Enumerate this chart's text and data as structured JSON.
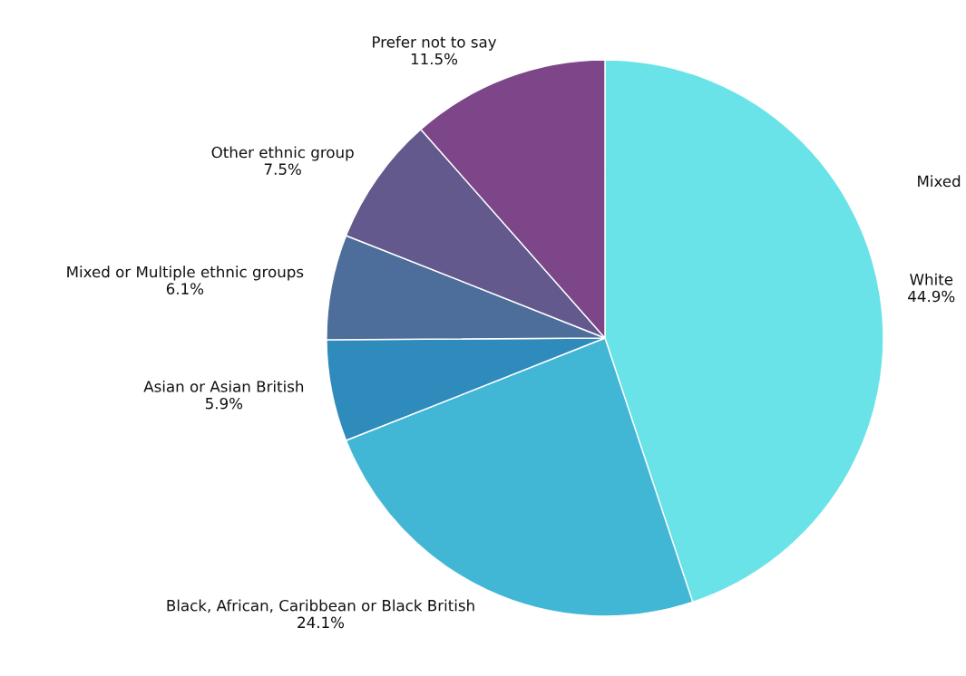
{
  "chart_data": {
    "type": "pie",
    "categories": [
      "White",
      "Black, African, Caribbean or Black British",
      "Asian or Asian British",
      "Mixed or Multiple ethnic groups",
      "Other ethnic group",
      "Prefer not to say"
    ],
    "values": [
      44.9,
      24.1,
      5.9,
      6.1,
      7.5,
      11.5
    ],
    "value_labels": [
      "44.9%",
      "24.1%",
      "5.9%",
      "6.1%",
      "7.5%",
      "11.5%"
    ],
    "colors": [
      "#69e3e7",
      "#42b7d5",
      "#2e8bbb",
      "#4d6d9a",
      "#63598d",
      "#7d4689"
    ],
    "annotations": [
      "Mixed"
    ],
    "legend": false
  }
}
